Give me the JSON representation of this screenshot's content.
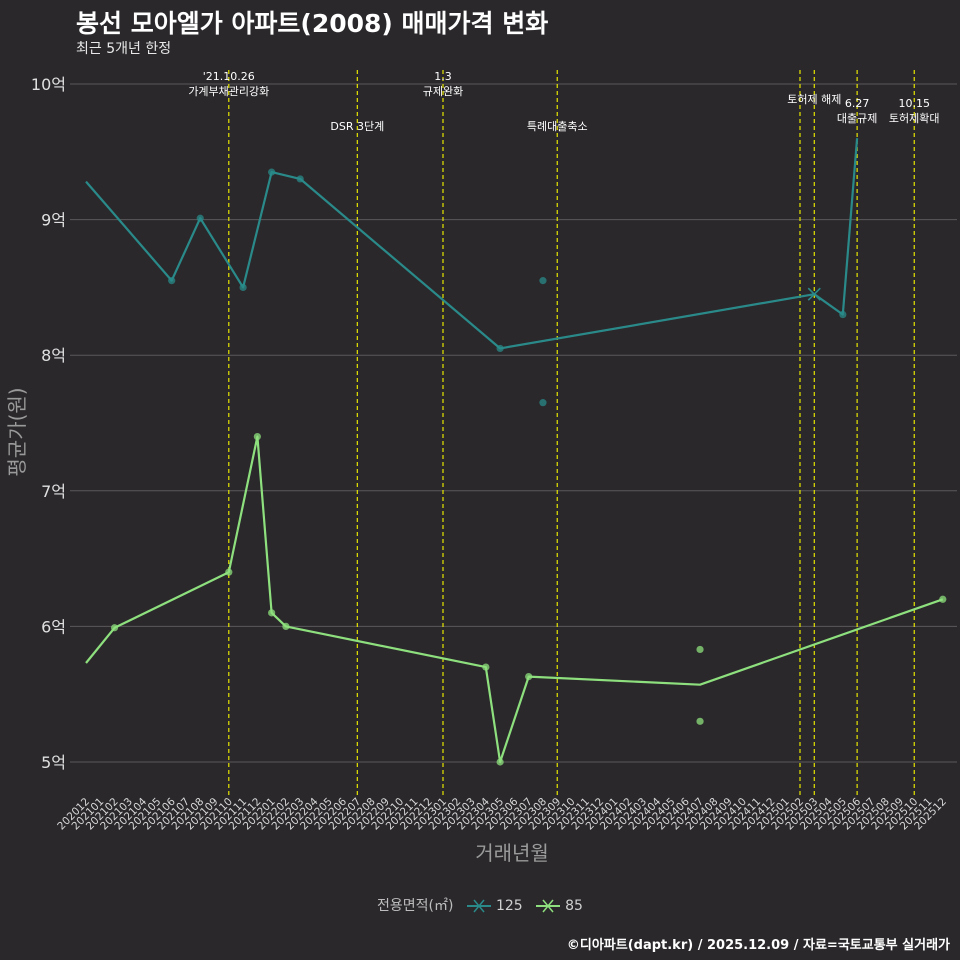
{
  "title": "봉선 모아엘가 아파트(2008) 매매가격 변화",
  "subtitle": "최근 5개년 한정",
  "caption": "©디아파트(dapt.kr) / 2025.12.09 / 자료=국토교통부 실거래가",
  "colors": {
    "background": "#2a282b",
    "grid": "#5a585b",
    "series_125": "#2a8a8a",
    "series_85": "#8ee07e",
    "event_line": "#e6e600"
  },
  "chart_data": {
    "type": "line",
    "xlabel": "거래년월",
    "ylabel": "평균가(원)",
    "ylim": [
      4.8,
      10.2
    ],
    "yticks": [
      {
        "value": 5,
        "label": "5억"
      },
      {
        "value": 6,
        "label": "6억"
      },
      {
        "value": 7,
        "label": "7억"
      },
      {
        "value": 8,
        "label": "8억"
      },
      {
        "value": 9,
        "label": "9억"
      },
      {
        "value": 10,
        "label": "10억"
      }
    ],
    "months": [
      "202012",
      "202101",
      "202102",
      "202103",
      "202104",
      "202105",
      "202106",
      "202107",
      "202108",
      "202109",
      "202110",
      "202111",
      "202112",
      "202201",
      "202202",
      "202203",
      "202204",
      "202205",
      "202206",
      "202207",
      "202208",
      "202209",
      "202210",
      "202211",
      "202212",
      "202301",
      "202302",
      "202303",
      "202304",
      "202305",
      "202306",
      "202307",
      "202308",
      "202309",
      "202310",
      "202311",
      "202312",
      "202401",
      "202402",
      "202403",
      "202404",
      "202405",
      "202406",
      "202407",
      "202408",
      "202409",
      "202410",
      "202411",
      "202412",
      "202501",
      "202502",
      "202503",
      "202504",
      "202505",
      "202506",
      "202507",
      "202508",
      "202509",
      "202510",
      "202511",
      "202512"
    ],
    "legend_title": "전용면적(㎡)",
    "series": [
      {
        "name": "125",
        "color": "#2a8a8a",
        "line": [
          [
            "202012",
            9.28
          ],
          [
            "202106",
            8.55
          ],
          [
            "202108",
            9.01
          ],
          [
            "202111",
            8.5
          ],
          [
            "202201",
            9.35
          ],
          [
            "202203",
            9.3
          ],
          [
            "202305",
            8.05
          ],
          [
            "202503",
            8.45
          ],
          [
            "202505",
            8.3
          ],
          [
            "202506",
            9.6
          ]
        ],
        "points": [
          [
            "202106",
            8.55
          ],
          [
            "202108",
            9.01
          ],
          [
            "202111",
            8.5
          ],
          [
            "202201",
            9.35
          ],
          [
            "202203",
            9.3
          ],
          [
            "202305",
            8.05
          ],
          [
            "202308",
            8.55
          ],
          [
            "202308",
            7.65
          ],
          [
            "202505",
            8.3
          ]
        ],
        "crosses": [
          [
            "202503",
            8.45
          ]
        ]
      },
      {
        "name": "85",
        "color": "#8ee07e",
        "line": [
          [
            "202012",
            5.73
          ],
          [
            "202102",
            5.99
          ],
          [
            "202110",
            6.4
          ],
          [
            "202112",
            7.4
          ],
          [
            "202201",
            6.1
          ],
          [
            "202202",
            6.0
          ],
          [
            "202304",
            5.7
          ],
          [
            "202305",
            5.0
          ],
          [
            "202307",
            5.63
          ],
          [
            "202407",
            5.57
          ],
          [
            "202512",
            6.2
          ]
        ],
        "points": [
          [
            "202102",
            5.99
          ],
          [
            "202110",
            6.4
          ],
          [
            "202112",
            7.4
          ],
          [
            "202201",
            6.1
          ],
          [
            "202202",
            6.0
          ],
          [
            "202304",
            5.7
          ],
          [
            "202305",
            5.0
          ],
          [
            "202307",
            5.63
          ],
          [
            "202407",
            5.83
          ],
          [
            "202407",
            5.3
          ],
          [
            "202512",
            6.2
          ]
        ],
        "crosses": []
      }
    ],
    "events": [
      {
        "month": "202110",
        "lines": [
          "'21.10.26",
          "가계부채관리강화"
        ],
        "row": 0
      },
      {
        "month": "202207",
        "lines": [
          "DSR 3단계"
        ],
        "row": 2
      },
      {
        "month": "202301",
        "lines": [
          "1.3",
          "규제완화"
        ],
        "row": 0
      },
      {
        "month": "202309",
        "lines": [
          "특례대출축소"
        ],
        "row": 2
      },
      {
        "month": "202502",
        "lines": [],
        "row": 1
      },
      {
        "month": "202503",
        "lines": [
          "토허제 해제"
        ],
        "row": 1
      },
      {
        "month": "202506",
        "lines": [
          "6.27",
          "대출규제"
        ],
        "row": 3
      },
      {
        "month": "202510",
        "lines": [
          "10.15",
          "토허제확대"
        ],
        "row": 3
      }
    ]
  }
}
